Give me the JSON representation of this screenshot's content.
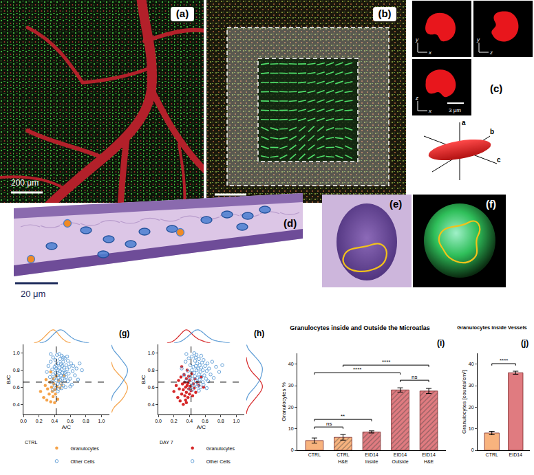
{
  "panels": {
    "a": {
      "label": "(a)",
      "scale_bar": "200 μm"
    },
    "b": {
      "label": "(b)"
    },
    "c": {
      "label": "(c)",
      "views": [
        {
          "axes": [
            "x",
            "y"
          ]
        },
        {
          "axes": [
            "z",
            "y"
          ]
        },
        {
          "axes": [
            "x",
            "z"
          ]
        }
      ],
      "scale_bar": "3 μm",
      "ellipsoid_axes": [
        "a",
        "b",
        "c"
      ]
    },
    "d": {
      "label": "(d)",
      "scale_bar": "20 μm"
    },
    "e": {
      "label": "(e)"
    },
    "f": {
      "label": "(f)"
    }
  },
  "chart_data": [
    {
      "type": "scatter",
      "panel_label": "(g)",
      "xlabel": "A/C",
      "ylabel": "B/C",
      "xlim": [
        0,
        1.1
      ],
      "ylim": [
        0.28,
        1.1
      ],
      "xticks": [
        {
          "value": 0,
          "label": "0.0"
        },
        0.2,
        0.4,
        0.6,
        0.8,
        {
          "value": 1,
          "label": "1.0"
        }
      ],
      "yticks": [
        0.4,
        0.6,
        0.8,
        {
          "value": 1,
          "label": "1.0"
        }
      ],
      "legend": "bottom",
      "legend_title": "CTRL",
      "reference_lines": {
        "x": 0.42,
        "y": 0.66
      },
      "series": [
        {
          "name": "Granulocytes",
          "color": "#f5a34a",
          "marker": "filled",
          "x": [
            0.22,
            0.26,
            0.28,
            0.3,
            0.31,
            0.33,
            0.34,
            0.35,
            0.36,
            0.37,
            0.38,
            0.38,
            0.39,
            0.4,
            0.41,
            0.42,
            0.43,
            0.44,
            0.45,
            0.47,
            0.49,
            0.52,
            0.29,
            0.35,
            0.4
          ],
          "values": [
            0.55,
            0.48,
            0.62,
            0.45,
            0.58,
            0.52,
            0.66,
            0.43,
            0.6,
            0.55,
            0.7,
            0.49,
            0.64,
            0.57,
            0.52,
            0.73,
            0.61,
            0.46,
            0.68,
            0.59,
            0.63,
            0.74,
            0.69,
            0.78,
            0.42
          ]
        },
        {
          "name": "Other Cells",
          "color": "#5b9bd5",
          "marker": "open",
          "x": [
            0.3,
            0.32,
            0.34,
            0.35,
            0.36,
            0.37,
            0.38,
            0.38,
            0.39,
            0.4,
            0.4,
            0.41,
            0.41,
            0.42,
            0.42,
            0.43,
            0.43,
            0.44,
            0.44,
            0.45,
            0.45,
            0.45,
            0.46,
            0.46,
            0.47,
            0.47,
            0.47,
            0.48,
            0.48,
            0.48,
            0.49,
            0.49,
            0.5,
            0.5,
            0.5,
            0.51,
            0.51,
            0.52,
            0.52,
            0.53,
            0.53,
            0.54,
            0.54,
            0.55,
            0.55,
            0.56,
            0.57,
            0.57,
            0.58,
            0.59,
            0.6,
            0.61,
            0.62,
            0.63,
            0.64,
            0.66,
            0.68,
            0.7,
            0.72,
            0.75,
            0.44,
            0.46,
            0.49,
            0.51,
            0.38,
            0.56,
            0.42,
            0.6,
            0.35,
            0.53
          ],
          "values": [
            0.78,
            0.85,
            0.72,
            0.9,
            0.66,
            0.81,
            0.75,
            0.95,
            0.7,
            0.84,
            0.62,
            0.77,
            0.92,
            0.68,
            0.86,
            0.74,
            0.98,
            0.8,
            0.64,
            0.71,
            0.88,
            0.58,
            0.83,
            0.76,
            0.69,
            0.93,
            0.79,
            0.65,
            0.87,
            0.74,
            0.81,
            0.97,
            0.7,
            0.85,
            0.77,
            0.62,
            0.9,
            0.73,
            0.83,
            0.68,
            0.94,
            0.78,
            0.6,
            0.86,
            0.72,
            0.81,
            0.67,
            0.91,
            0.76,
            0.84,
            0.7,
            0.88,
            0.63,
            0.79,
            0.85,
            0.74,
            0.82,
            0.69,
            0.88,
            0.8,
            0.55,
            0.99,
            0.59,
            0.95,
            0.57,
            0.96,
            0.82,
            0.61,
            0.99,
            0.77
          ]
        }
      ]
    },
    {
      "type": "scatter",
      "panel_label": "(h)",
      "xlabel": "A/C",
      "ylabel": "B/C",
      "xlim": [
        0,
        1.1
      ],
      "ylim": [
        0.28,
        1.1
      ],
      "xticks": [
        {
          "value": 0,
          "label": "0.0"
        },
        0.2,
        0.4,
        0.6,
        0.8,
        {
          "value": 1,
          "label": "1.0"
        }
      ],
      "yticks": [
        0.4,
        0.6,
        0.8,
        {
          "value": 1,
          "label": "1.0"
        }
      ],
      "legend": "bottom",
      "legend_title": "DAY 7",
      "reference_lines": {
        "x": 0.42,
        "y": 0.66
      },
      "series": [
        {
          "name": "Granulocytes",
          "color": "#d62728",
          "marker": "filled",
          "x": [
            0.2,
            0.23,
            0.25,
            0.26,
            0.27,
            0.28,
            0.29,
            0.3,
            0.31,
            0.32,
            0.32,
            0.33,
            0.34,
            0.34,
            0.35,
            0.35,
            0.36,
            0.36,
            0.37,
            0.37,
            0.38,
            0.38,
            0.39,
            0.39,
            0.4,
            0.4,
            0.41,
            0.42,
            0.43,
            0.44,
            0.45,
            0.46,
            0.47,
            0.48,
            0.5,
            0.52,
            0.55,
            0.58,
            0.3,
            0.36
          ],
          "values": [
            0.55,
            0.62,
            0.48,
            0.68,
            0.58,
            0.44,
            0.72,
            0.52,
            0.64,
            0.4,
            0.57,
            0.75,
            0.5,
            0.66,
            0.6,
            0.45,
            0.7,
            0.54,
            0.62,
            0.8,
            0.48,
            0.65,
            0.58,
            0.73,
            0.52,
            0.68,
            0.61,
            0.56,
            0.76,
            0.5,
            0.64,
            0.59,
            0.7,
            0.54,
            0.66,
            0.62,
            0.72,
            0.6,
            0.84,
            0.42
          ]
        },
        {
          "name": "Other Cells",
          "color": "#5b9bd5",
          "marker": "open",
          "x": [
            0.3,
            0.33,
            0.35,
            0.36,
            0.38,
            0.39,
            0.4,
            0.41,
            0.42,
            0.43,
            0.43,
            0.44,
            0.45,
            0.45,
            0.46,
            0.47,
            0.47,
            0.48,
            0.48,
            0.49,
            0.49,
            0.5,
            0.5,
            0.51,
            0.51,
            0.52,
            0.52,
            0.53,
            0.53,
            0.54,
            0.54,
            0.55,
            0.55,
            0.56,
            0.57,
            0.57,
            0.58,
            0.59,
            0.6,
            0.61,
            0.62,
            0.63,
            0.64,
            0.65,
            0.67,
            0.69,
            0.71,
            0.74,
            0.78,
            0.82,
            0.44,
            0.46,
            0.5,
            0.55,
            0.4,
            0.58,
            0.48,
            0.36,
            0.62,
            0.52
          ],
          "values": [
            0.82,
            0.74,
            0.9,
            0.68,
            0.79,
            0.94,
            0.72,
            0.86,
            0.65,
            0.8,
            0.96,
            0.7,
            0.84,
            0.62,
            0.77,
            0.91,
            0.73,
            0.85,
            0.67,
            0.8,
            0.98,
            0.71,
            0.88,
            0.64,
            0.82,
            0.75,
            0.93,
            0.69,
            0.86,
            0.78,
            0.6,
            0.83,
            0.72,
            0.89,
            0.66,
            0.8,
            0.92,
            0.74,
            0.85,
            0.7,
            0.79,
            0.88,
            0.67,
            0.82,
            0.75,
            0.9,
            0.71,
            0.84,
            0.78,
            0.86,
            0.57,
            1.0,
            0.61,
            0.97,
            0.58,
            0.63,
            0.95,
            0.99,
            0.59,
            0.56
          ]
        }
      ]
    },
    {
      "type": "bar",
      "panel_label": "(i)",
      "title": "Granulocytes inside and Outside the Microatlas",
      "ylabel": "Granulocytes %",
      "categories": [
        "CTRL",
        "CTRL H&E",
        "EID14 Inside",
        "EID14 Outside",
        "EID14 H&E"
      ],
      "values": [
        4.5,
        6,
        8.5,
        28,
        27.5
      ],
      "errors": [
        1.2,
        1.3,
        0.5,
        1,
        1.2
      ],
      "colors": [
        "#f8b37e",
        "#f8b37e",
        "#e07b80",
        "#e07b80",
        "#e07b80"
      ],
      "ylim": [
        0,
        45
      ],
      "yticks": [
        0,
        10,
        20,
        30,
        40
      ],
      "comparisons": [
        {
          "from": "CTRL",
          "to": "CTRL H&E",
          "label": "ns"
        },
        {
          "from": "EID14 Outside",
          "to": "EID14 H&E",
          "label": "ns"
        },
        {
          "from": "CTRL",
          "to": "EID14 Inside",
          "label": "**"
        },
        {
          "from": "CTRL",
          "to": "EID14 Outside",
          "label": "****"
        },
        {
          "from": "CTRL H&E",
          "to": "EID14 H&E",
          "label": "****"
        }
      ]
    },
    {
      "type": "bar",
      "panel_label": "(j)",
      "title": "Granulocytes inside Vessels",
      "ylabel": "Granulocytes [counts/cm²]",
      "categories": [
        "CTRL",
        "EID14"
      ],
      "values": [
        8,
        36
      ],
      "errors": [
        0.8,
        0.7
      ],
      "colors": [
        "#f8b37e",
        "#e07b80"
      ],
      "ylim": [
        0,
        45
      ],
      "yticks": [
        0,
        10,
        20,
        30,
        40
      ],
      "comparisons": [
        {
          "from": "CTRL",
          "to": "EID14",
          "label": "****"
        }
      ]
    }
  ]
}
